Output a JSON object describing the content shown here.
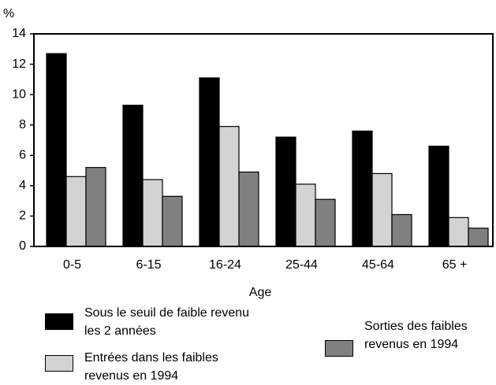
{
  "chart_data": {
    "type": "bar",
    "y_unit": "%",
    "x_label": "Age",
    "categories": [
      "0-5",
      "6-15",
      "16-24",
      "25-44",
      "45-64",
      "65 +"
    ],
    "series": [
      {
        "name": "Sous le seuil de faible revenu les 2 années",
        "color": "#000000",
        "values": [
          12.7,
          9.3,
          11.1,
          7.2,
          7.6,
          6.6
        ]
      },
      {
        "name": "Entrées dans les faibles revenus en 1994",
        "color": "#d3d3d3",
        "values": [
          4.6,
          4.4,
          7.9,
          4.1,
          4.8,
          1.9
        ]
      },
      {
        "name": "Sorties des faibles revenus en 1994",
        "color": "#808080",
        "values": [
          5.2,
          3.3,
          4.9,
          3.1,
          2.1,
          1.2
        ]
      }
    ],
    "ylim": [
      0,
      14
    ],
    "yticks": [
      0,
      2,
      4,
      6,
      8,
      10,
      12,
      14
    ]
  }
}
